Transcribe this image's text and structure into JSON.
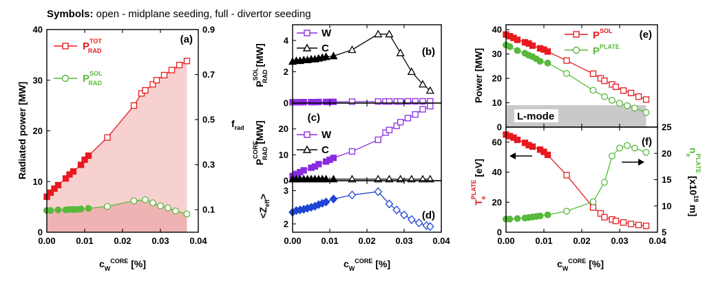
{
  "colors": {
    "red": "#e8191f",
    "green": "#57b93b",
    "purple": "#8a2be2",
    "blue": "#1f45d4",
    "black": "#000000",
    "pink_fill": "#f7d0d0",
    "pink_fill_bottom": "#efb3b3",
    "gray_fill": "#c9c9c9"
  },
  "header": {
    "bold": "Symbols:",
    "rest": " open - midplane seeding, full - divertor seeding"
  },
  "chart_data": [
    {
      "id": "a",
      "type": "line",
      "panel_label": "(a)",
      "xlabel": "c_W^CORE [%]",
      "ylabel": "Radiated power [MW]",
      "y2label": "f_rad",
      "xlim": [
        0,
        0.04
      ],
      "ylim": [
        0,
        40
      ],
      "y2lim": [
        0,
        0.9
      ],
      "xticks": [
        "0.00",
        "0.01",
        "0.02",
        "0.03",
        "0.04"
      ],
      "yticks": [
        "0",
        "10",
        "20",
        "30",
        "40"
      ],
      "y2ticks": [
        "0.1",
        "0.3",
        "0.5",
        "0.7",
        "0.9"
      ],
      "legend": [
        "P_RAD^TOT",
        "P_RAD^SOL"
      ],
      "series": [
        {
          "name": "P_RAD^TOT",
          "color": "red",
          "marker": "square",
          "filled_until": 0.011,
          "x": [
            0.0,
            0.001,
            0.002,
            0.003,
            0.005,
            0.006,
            0.007,
            0.009,
            0.01,
            0.011,
            0.016,
            0.023,
            0.025,
            0.026,
            0.028,
            0.029,
            0.031,
            0.033,
            0.035,
            0.037
          ],
          "y": [
            7.0,
            7.8,
            8.6,
            9.3,
            10.6,
            11.4,
            12.0,
            13.3,
            14.3,
            15.1,
            18.7,
            25.0,
            27.4,
            28.0,
            29.2,
            30.0,
            31.0,
            32.0,
            33.0,
            33.8
          ]
        },
        {
          "name": "P_RAD^SOL",
          "color": "green",
          "marker": "circle",
          "filled_until": 0.011,
          "x": [
            0.0,
            0.001,
            0.003,
            0.005,
            0.006,
            0.007,
            0.008,
            0.009,
            0.011,
            0.016,
            0.023,
            0.026,
            0.028,
            0.03,
            0.032,
            0.034,
            0.037
          ],
          "y": [
            4.3,
            4.3,
            4.4,
            4.4,
            4.5,
            4.5,
            4.5,
            4.6,
            4.7,
            5.1,
            6.2,
            6.4,
            5.8,
            5.2,
            4.8,
            4.2,
            3.6
          ]
        }
      ]
    },
    {
      "id": "b",
      "type": "line",
      "panel_label": "(b)",
      "ylabel": "P_RAD^SOL [MW]",
      "xlim": [
        0,
        0.04
      ],
      "ylim": [
        0,
        5
      ],
      "yticks": [
        "0",
        "2",
        "4"
      ],
      "legend": [
        "W",
        "C"
      ],
      "series": [
        {
          "name": "W",
          "color": "purple",
          "marker": "square",
          "filled_until": 0.011,
          "x": [
            0.0,
            0.001,
            0.002,
            0.003,
            0.005,
            0.006,
            0.007,
            0.009,
            0.01,
            0.011,
            0.016,
            0.023,
            0.025,
            0.026,
            0.028,
            0.029,
            0.031,
            0.033,
            0.035,
            0.037
          ],
          "y": [
            0.05,
            0.05,
            0.05,
            0.06,
            0.06,
            0.06,
            0.07,
            0.07,
            0.07,
            0.08,
            0.09,
            0.1,
            0.1,
            0.1,
            0.1,
            0.1,
            0.11,
            0.11,
            0.11,
            0.11
          ]
        },
        {
          "name": "C",
          "color": "black",
          "marker": "triangle",
          "filled_until": 0.011,
          "x": [
            0.0,
            0.001,
            0.002,
            0.003,
            0.004,
            0.005,
            0.006,
            0.007,
            0.008,
            0.009,
            0.011,
            0.016,
            0.023,
            0.026,
            0.029,
            0.032,
            0.035,
            0.037
          ],
          "y": [
            2.65,
            2.7,
            2.7,
            2.75,
            2.75,
            2.8,
            2.8,
            2.85,
            2.9,
            2.95,
            3.0,
            3.4,
            4.4,
            4.4,
            3.2,
            2.0,
            1.2,
            0.8
          ]
        }
      ]
    },
    {
      "id": "c",
      "type": "line",
      "panel_label": "(c)",
      "ylabel": "P_RAD^CORE [MW]",
      "xlim": [
        0,
        0.04
      ],
      "ylim": [
        0,
        30
      ],
      "yticks": [
        "0",
        "10",
        "20"
      ],
      "legend": [
        "W",
        "C"
      ],
      "series": [
        {
          "name": "W",
          "color": "purple",
          "marker": "square",
          "filled_until": 0.011,
          "x": [
            0.0,
            0.001,
            0.002,
            0.003,
            0.005,
            0.006,
            0.007,
            0.009,
            0.01,
            0.011,
            0.016,
            0.023,
            0.025,
            0.026,
            0.028,
            0.029,
            0.031,
            0.033,
            0.035,
            0.037
          ],
          "y": [
            1.8,
            2.6,
            3.3,
            4.0,
            5.0,
            5.5,
            6.4,
            7.4,
            8.1,
            8.8,
            11.3,
            15.8,
            18.6,
            19.6,
            21.2,
            22.6,
            24.2,
            25.6,
            27.6,
            28.8
          ]
        },
        {
          "name": "C",
          "color": "black",
          "marker": "triangle",
          "filled_until": 0.011,
          "x": [
            0.0,
            0.001,
            0.002,
            0.003,
            0.004,
            0.005,
            0.006,
            0.007,
            0.008,
            0.009,
            0.011,
            0.016,
            0.023,
            0.026,
            0.029,
            0.032,
            0.035,
            0.037
          ],
          "y": [
            0.6,
            0.6,
            0.6,
            0.6,
            0.6,
            0.6,
            0.6,
            0.6,
            0.6,
            0.6,
            0.6,
            0.6,
            0.6,
            0.6,
            0.6,
            0.6,
            0.6,
            0.6
          ]
        }
      ]
    },
    {
      "id": "d",
      "type": "line",
      "panel_label": "(d)",
      "xlabel": "c_W^CORE [%]",
      "ylabel": "<Z_eff>",
      "xlim": [
        0,
        0.04
      ],
      "ylim": [
        1.75,
        3.3
      ],
      "yticks": [
        "2",
        "3"
      ],
      "xticks": [
        "0.00",
        "0.01",
        "0.02",
        "0.03",
        "0.04"
      ],
      "series": [
        {
          "name": "Zeff",
          "color": "blue",
          "marker": "diamond",
          "filled_until": 0.011,
          "x": [
            0.0,
            0.001,
            0.002,
            0.003,
            0.004,
            0.005,
            0.006,
            0.007,
            0.008,
            0.009,
            0.011,
            0.016,
            0.023,
            0.026,
            0.028,
            0.03,
            0.032,
            0.034,
            0.036,
            0.037
          ],
          "y": [
            2.35,
            2.4,
            2.42,
            2.44,
            2.47,
            2.5,
            2.53,
            2.58,
            2.62,
            2.66,
            2.75,
            2.87,
            2.97,
            2.6,
            2.42,
            2.27,
            2.13,
            2.03,
            1.95,
            1.92
          ]
        }
      ]
    },
    {
      "id": "e",
      "type": "line",
      "panel_label": "(e)",
      "ylabel": "Power [MW]",
      "xlim": [
        0,
        0.04
      ],
      "ylim": [
        0,
        42
      ],
      "yticks": [
        "0",
        "10",
        "20",
        "30",
        "40"
      ],
      "legend": [
        "P^SOL",
        "P^PLATE"
      ],
      "annotation": "L-mode",
      "lmode_threshold": 9,
      "series": [
        {
          "name": "P^SOL",
          "color": "red",
          "marker": "square",
          "filled_until": 0.011,
          "x": [
            0.0,
            0.001,
            0.002,
            0.003,
            0.005,
            0.006,
            0.007,
            0.009,
            0.01,
            0.011,
            0.016,
            0.023,
            0.025,
            0.026,
            0.028,
            0.029,
            0.031,
            0.033,
            0.035,
            0.037
          ],
          "y": [
            38.0,
            37.3,
            36.6,
            35.8,
            34.8,
            34.3,
            33.4,
            32.3,
            31.8,
            31.0,
            27.3,
            21.9,
            20.0,
            19.0,
            17.5,
            16.5,
            15.0,
            14.0,
            12.5,
            11.3
          ]
        },
        {
          "name": "P^PLATE",
          "color": "green",
          "marker": "circle",
          "filled_until": 0.011,
          "x": [
            0.0,
            0.001,
            0.003,
            0.005,
            0.006,
            0.007,
            0.008,
            0.009,
            0.011,
            0.016,
            0.023,
            0.026,
            0.028,
            0.03,
            0.032,
            0.034,
            0.037
          ],
          "y": [
            33.7,
            33.0,
            31.4,
            30.3,
            29.5,
            28.9,
            28.0,
            27.0,
            26.3,
            22.0,
            15.1,
            12.5,
            11.0,
            9.8,
            8.8,
            7.8,
            6.0
          ]
        }
      ]
    },
    {
      "id": "f",
      "type": "line",
      "panel_label": "(f)",
      "xlabel": "c_W^CORE [%]",
      "ylabel": "T_e^PLATE [eV]",
      "y2label": "n_e^PLATE [x10^19 m]",
      "xlim": [
        0,
        0.04
      ],
      "ylim": [
        0,
        70
      ],
      "y2lim": [
        5,
        25
      ],
      "yticks": [
        "0",
        "20",
        "40",
        "60"
      ],
      "y2ticks": [
        "5",
        "10",
        "15",
        "20",
        "25"
      ],
      "xticks": [
        "0.00",
        "0.01",
        "0.02",
        "0.03",
        "0.04"
      ],
      "series": [
        {
          "name": "T_e^PLATE",
          "color": "red",
          "marker": "square",
          "filled_until": 0.011,
          "axis": "left",
          "x": [
            0.0,
            0.001,
            0.002,
            0.003,
            0.005,
            0.006,
            0.007,
            0.009,
            0.01,
            0.011,
            0.016,
            0.023,
            0.025,
            0.026,
            0.028,
            0.029,
            0.031,
            0.033,
            0.035,
            0.037
          ],
          "y": [
            65.0,
            64.0,
            63.0,
            61.5,
            59.5,
            58.0,
            57.0,
            55.0,
            53.5,
            51.5,
            38.0,
            16.5,
            12.5,
            10.0,
            8.5,
            7.5,
            6.5,
            5.5,
            4.8,
            4.2
          ]
        },
        {
          "name": "n_e^PLATE",
          "color": "green",
          "marker": "circle",
          "filled_until": 0.011,
          "axis": "right",
          "x": [
            0.0,
            0.001,
            0.003,
            0.005,
            0.006,
            0.007,
            0.008,
            0.009,
            0.011,
            0.016,
            0.023,
            0.026,
            0.028,
            0.03,
            0.032,
            0.034,
            0.037
          ],
          "y": [
            7.5,
            7.5,
            7.6,
            7.7,
            7.8,
            7.9,
            8.0,
            8.1,
            8.3,
            9.0,
            10.8,
            14.5,
            19.5,
            21.0,
            21.5,
            21.0,
            20.2
          ]
        }
      ]
    }
  ]
}
